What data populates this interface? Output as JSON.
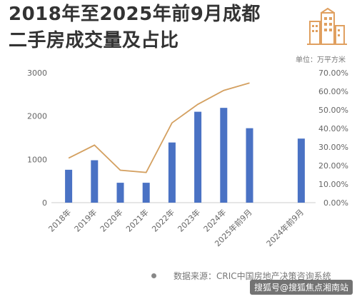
{
  "title_lines": [
    "2018年至2025年前9月成都",
    "二手房成交量及占比"
  ],
  "unit_label": "单位：万平方米",
  "source_text": "数据来源：CRIC中国房地产决策咨询系统",
  "watermark_text": "搜狐号@搜狐焦点湘南站",
  "colors": {
    "bar": "#4a72c4",
    "line": "#d4a060",
    "logo": "#e0a060",
    "title": "#333333"
  },
  "chart_data": {
    "type": "bar",
    "categories": [
      "2018年",
      "2019年",
      "2020年",
      "2021年",
      "2022年",
      "2023年",
      "2024年",
      "2025年前9月",
      "",
      "2024年前9月"
    ],
    "series": [
      {
        "type": "bar",
        "axis": "left",
        "values": [
          760,
          980,
          460,
          460,
          1390,
          2100,
          2190,
          1720,
          null,
          1480
        ]
      },
      {
        "type": "line",
        "axis": "right",
        "values": [
          24,
          31,
          17.5,
          16.3,
          43,
          53,
          60.5,
          64.5,
          null,
          null
        ]
      }
    ],
    "y_left": {
      "min": 0,
      "max": 3000,
      "ticks": [
        0,
        1000,
        2000,
        3000
      ],
      "tick_labels": [
        "0",
        "1000",
        "2000",
        "3000"
      ]
    },
    "y_right": {
      "min": 0,
      "max": 70,
      "ticks": [
        0,
        10,
        20,
        30,
        40,
        50,
        60,
        70
      ],
      "tick_labels": [
        "0.00%",
        "10.00%",
        "20.00%",
        "30.00%",
        "40.00%",
        "50.00%",
        "60.00%",
        "70.00%"
      ]
    },
    "grid": false
  }
}
